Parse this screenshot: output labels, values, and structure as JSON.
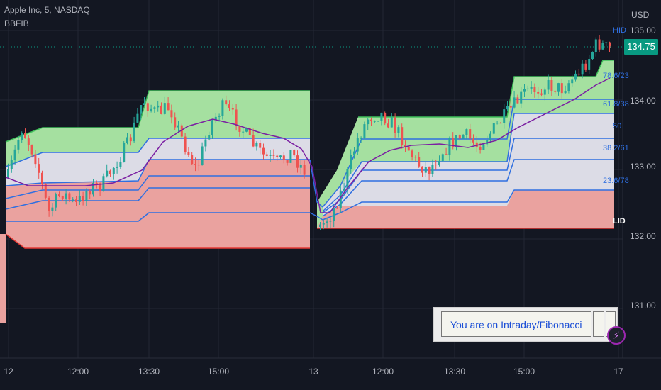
{
  "header": {
    "symbol": "Apple Inc, 5, NASDAQ",
    "indicator": "BBFIB",
    "currency": "USD",
    "last_price": "134.75"
  },
  "price_axis": {
    "ticks": [
      "135.00",
      "134.00",
      "133.00",
      "132.00",
      "131.00"
    ]
  },
  "time_axis": {
    "ticks": [
      "12",
      "12:00",
      "13:30",
      "15:00",
      "13",
      "12:00",
      "13:30",
      "15:00",
      "17"
    ]
  },
  "level_labels": {
    "hid": "HID",
    "l786": "78.6/23",
    "l618": "61.8/38",
    "l50": "50",
    "l382": "38.2/61",
    "l236": "23.6/78",
    "lid": "LID"
  },
  "info_box": {
    "text": "You are on Intraday/Fibonacci"
  },
  "icons": {
    "bolt": "lightning-bolt-icon"
  },
  "colors": {
    "background": "#131722",
    "up_candle": "#26a69a",
    "down_candle": "#ef5350",
    "upper_zone": "#a5e0a0",
    "middle_zone": "#dcdce6",
    "lower_zone": "#eaa29f",
    "fib_line": "#2f6fe0",
    "ma_line": "#7b1fa2",
    "price_tag": "#089981"
  },
  "chart_data": {
    "type": "candlestick",
    "title": "Apple Inc, 5, NASDAQ",
    "ylim": [
      130.5,
      135.2
    ],
    "last_price": 134.75,
    "sessions": [
      {
        "label": "12",
        "zone": {
          "high": [
            133.3,
            133.8,
            134.1
          ],
          "low": [
            132.3,
            132.2,
            131.8
          ]
        },
        "bars": 90,
        "open": 133.0,
        "close": 133.0
      },
      {
        "label": "13",
        "zone": {
          "high": [
            133.6,
            134.4,
            134.4
          ],
          "low": [
            132.3,
            132.2,
            132.1
          ]
        },
        "bars": 88,
        "open": 132.3,
        "close": 134.5
      }
    ],
    "fib_levels": [
      "HID",
      "78.6/23",
      "61.8/38",
      "50",
      "38.2/61",
      "23.6/78",
      "LID"
    ]
  }
}
